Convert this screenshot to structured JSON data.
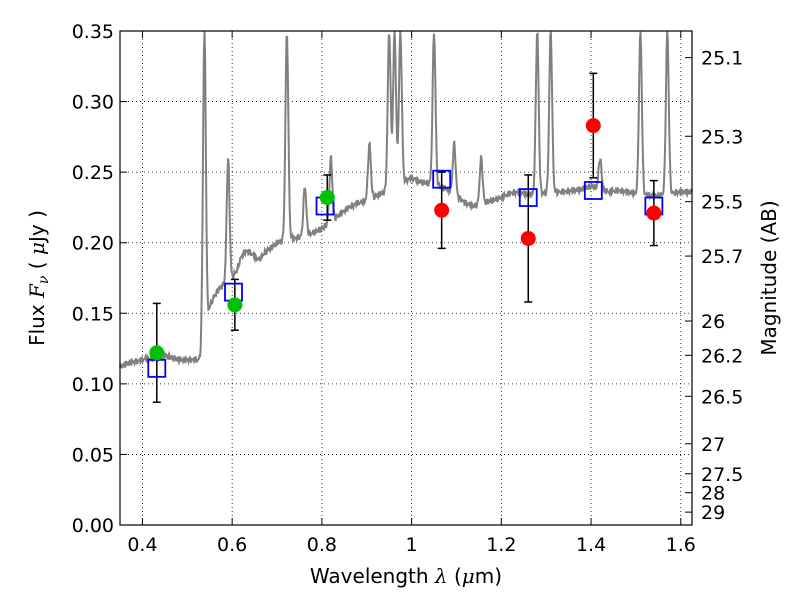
{
  "chart_data": {
    "type": "scatter",
    "xlabel_prefix": "Wavelength  ",
    "xlabel_symbol": "λ",
    "xlabel_unit_open": " (",
    "xlabel_unit_mu": "μ",
    "xlabel_unit_rest": "m)",
    "ylabel_prefix": "Flux  ",
    "ylabel_symbol": "F",
    "ylabel_sub": "ν",
    "ylabel_unit_open": "  ( ",
    "ylabel_unit_mu": "μ",
    "ylabel_unit_rest": "Jy )",
    "y2label": "Magnitude (AB)",
    "xlim": [
      0.35,
      1.625
    ],
    "ylim": [
      0.0,
      0.35
    ],
    "x_ticks": [
      0.4,
      0.6,
      0.8,
      1.0,
      1.2,
      1.4,
      1.6
    ],
    "x_tick_labels": [
      "0.4",
      "0.6",
      "0.8",
      "1",
      "1.2",
      "1.4",
      "1.6"
    ],
    "y_ticks": [
      0.0,
      0.05,
      0.1,
      0.15,
      0.2,
      0.25,
      0.3,
      0.35
    ],
    "y_tick_labels": [
      "0.00",
      "0.05",
      "0.10",
      "0.15",
      "0.20",
      "0.25",
      "0.30",
      "0.35"
    ],
    "mag_ticks": [
      25.1,
      25.3,
      25.5,
      25.7,
      26,
      26.2,
      26.5,
      27,
      27.5,
      28,
      29
    ],
    "mag_tick_labels": [
      "25.1",
      "25.3",
      "25.5",
      "25.7",
      "26",
      "26.2",
      "26.5",
      "27",
      "27.5",
      "28",
      "29"
    ],
    "grid": true,
    "colors": {
      "spectrum": "#808080",
      "model_box": "#0000ff",
      "optical_points": "#00c000",
      "nir_points": "#ff0000",
      "errorbar": "#000000"
    },
    "spectrum": {
      "x": [
        0.35,
        0.37,
        0.39,
        0.41,
        0.43,
        0.45,
        0.47,
        0.49,
        0.51,
        0.525,
        0.53,
        0.535,
        0.54,
        0.545,
        0.55,
        0.56,
        0.57,
        0.58,
        0.59,
        0.6,
        0.61,
        0.62,
        0.63,
        0.64,
        0.65,
        0.66,
        0.67,
        0.68,
        0.69,
        0.7,
        0.72,
        0.74,
        0.76,
        0.78,
        0.8,
        0.82,
        0.84,
        0.86,
        0.88,
        0.9,
        0.92,
        0.94,
        0.96,
        0.98,
        1.0,
        1.02,
        1.04,
        1.06,
        1.08,
        1.1,
        1.12,
        1.14,
        1.16,
        1.18,
        1.2,
        1.22,
        1.24,
        1.26,
        1.28,
        1.3,
        1.32,
        1.34,
        1.36,
        1.38,
        1.4,
        1.42,
        1.44,
        1.46,
        1.48,
        1.5,
        1.52,
        1.54,
        1.56,
        1.58,
        1.6,
        1.625
      ],
      "y": [
        0.112,
        0.115,
        0.116,
        0.118,
        0.118,
        0.12,
        0.118,
        0.117,
        0.117,
        0.117,
        0.119,
        0.126,
        0.15,
        0.145,
        0.155,
        0.162,
        0.167,
        0.17,
        0.172,
        0.175,
        0.18,
        0.19,
        0.194,
        0.193,
        0.19,
        0.188,
        0.192,
        0.195,
        0.197,
        0.2,
        0.202,
        0.203,
        0.205,
        0.207,
        0.21,
        0.215,
        0.22,
        0.225,
        0.228,
        0.23,
        0.233,
        0.236,
        0.24,
        0.243,
        0.246,
        0.243,
        0.242,
        0.24,
        0.238,
        0.233,
        0.228,
        0.226,
        0.228,
        0.23,
        0.232,
        0.235,
        0.236,
        0.234,
        0.235,
        0.235,
        0.236,
        0.236,
        0.237,
        0.238,
        0.24,
        0.238,
        0.236,
        0.237,
        0.236,
        0.235,
        0.234,
        0.233,
        0.234,
        0.235,
        0.236,
        0.236
      ],
      "emission_lines": [
        {
          "x": 0.538,
          "peak": 0.35
        },
        {
          "x": 0.591,
          "peak": 0.26
        },
        {
          "x": 0.722,
          "peak": 0.35
        },
        {
          "x": 0.762,
          "peak": 0.24
        },
        {
          "x": 0.82,
          "peak": 0.26
        },
        {
          "x": 0.906,
          "peak": 0.27
        },
        {
          "x": 0.95,
          "peak": 0.35
        },
        {
          "x": 0.962,
          "peak": 0.35
        },
        {
          "x": 0.975,
          "peak": 0.35
        },
        {
          "x": 1.05,
          "peak": 0.35
        },
        {
          "x": 1.095,
          "peak": 0.27
        },
        {
          "x": 1.155,
          "peak": 0.26
        },
        {
          "x": 1.28,
          "peak": 0.35
        },
        {
          "x": 1.31,
          "peak": 0.35
        },
        {
          "x": 1.42,
          "peak": 0.26
        },
        {
          "x": 1.51,
          "peak": 0.35
        },
        {
          "x": 1.57,
          "peak": 0.35
        }
      ]
    },
    "model_fluxes": {
      "x": [
        0.432,
        0.603,
        0.807,
        1.067,
        1.26,
        1.405,
        1.54
      ],
      "y": [
        0.111,
        0.165,
        0.226,
        0.245,
        0.232,
        0.237,
        0.226
      ]
    },
    "observed_optical": {
      "x": [
        0.432,
        0.606,
        0.812
      ],
      "y": [
        0.122,
        0.156,
        0.232
      ],
      "y_err": [
        0.035,
        0.018,
        0.016
      ]
    },
    "observed_nir": {
      "x": [
        1.067,
        1.26,
        1.405,
        1.54
      ],
      "y": [
        0.223,
        0.203,
        0.283,
        0.221
      ],
      "y_err": [
        0.027,
        0.045,
        0.037,
        0.023
      ]
    }
  }
}
